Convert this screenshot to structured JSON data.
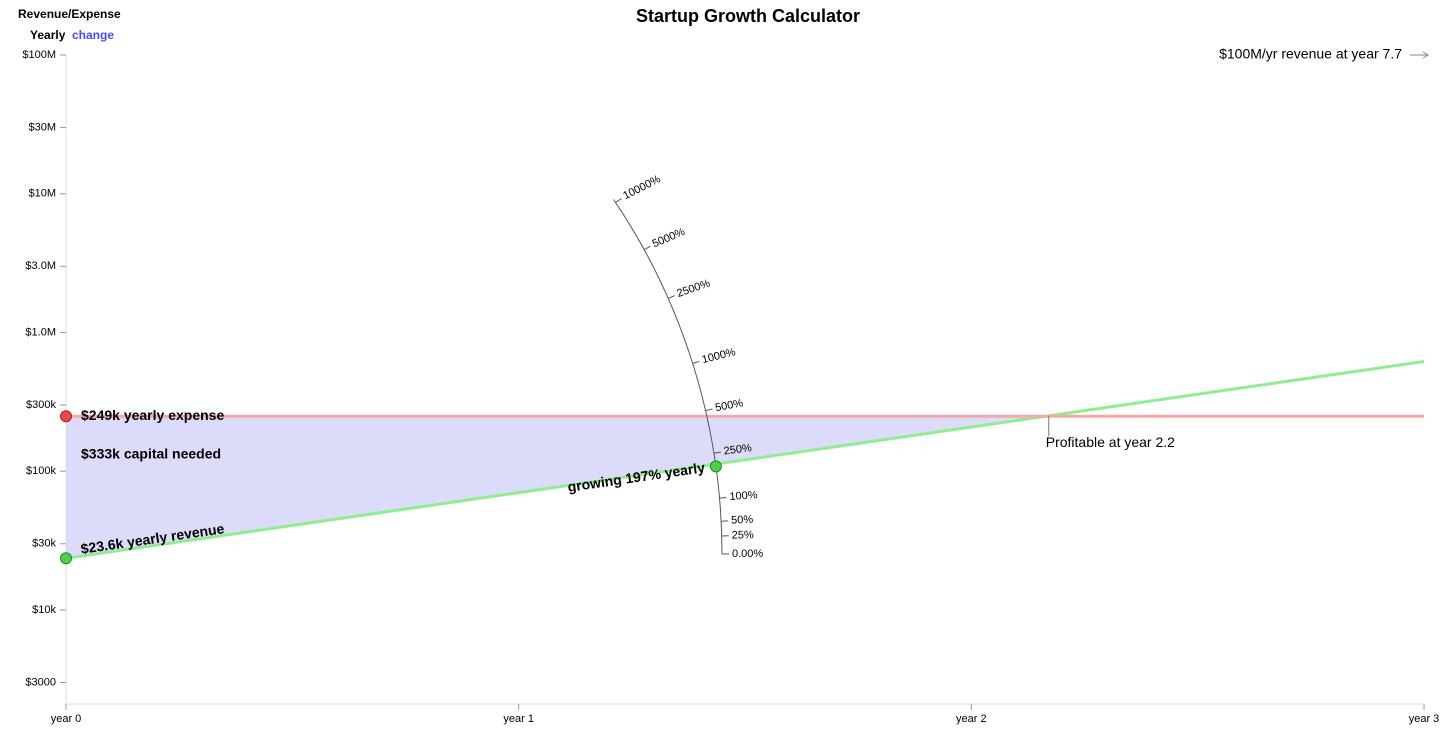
{
  "chart_data": {
    "type": "line",
    "title": "Startup Growth Calculator",
    "ylabel": "Revenue/Expense",
    "period": "Yearly",
    "change_link": "change",
    "log_y": true,
    "x": [
      0,
      1,
      2,
      3
    ],
    "xlim": [
      0,
      3
    ],
    "xticks": [
      {
        "value": 0,
        "label": "year 0"
      },
      {
        "value": 1,
        "label": "year 1"
      },
      {
        "value": 2,
        "label": "year 2"
      },
      {
        "value": 3,
        "label": "year 3"
      }
    ],
    "ylim": [
      2100,
      100000000
    ],
    "yticks": [
      {
        "value": 3000,
        "label": "$3000"
      },
      {
        "value": 10000,
        "label": "$10k"
      },
      {
        "value": 30000,
        "label": "$30k"
      },
      {
        "value": 100000,
        "label": "$100k"
      },
      {
        "value": 300000,
        "label": "$300k"
      },
      {
        "value": 1000000,
        "label": "$1.0M"
      },
      {
        "value": 3000000,
        "label": "$3.0M"
      },
      {
        "value": 10000000,
        "label": "$10M"
      },
      {
        "value": 30000000,
        "label": "$30M"
      },
      {
        "value": 100000000,
        "label": "$100M"
      }
    ],
    "series": [
      {
        "name": "Revenue",
        "color": "#90ee90",
        "values": [
          23600,
          70100,
          208200,
          618300
        ]
      },
      {
        "name": "Expense",
        "color": "#f4aaa8",
        "values": [
          249000,
          249000,
          249000,
          249000
        ]
      }
    ],
    "area_color": "#dcdcfa",
    "expense_label": "$249k yearly expense",
    "capital_label": "$333k capital needed",
    "revenue_label": "$23.6k yearly revenue",
    "profit_label": "Profitable at year 2.2",
    "target_label": "$100M/yr revenue at year 7.7",
    "growth_dial": {
      "rate": 197,
      "label": "growing 197% yearly",
      "ticks": [
        {
          "value": 0,
          "label": "0.00%"
        },
        {
          "value": 25,
          "label": "25%"
        },
        {
          "value": 50,
          "label": "50%"
        },
        {
          "value": 100,
          "label": "100%"
        },
        {
          "value": 250,
          "label": "250%"
        },
        {
          "value": 500,
          "label": "500%"
        },
        {
          "value": 1000,
          "label": "1000%"
        },
        {
          "value": 2500,
          "label": "2500%"
        },
        {
          "value": 5000,
          "label": "5000%"
        },
        {
          "value": 10000,
          "label": "10000%"
        }
      ]
    }
  }
}
